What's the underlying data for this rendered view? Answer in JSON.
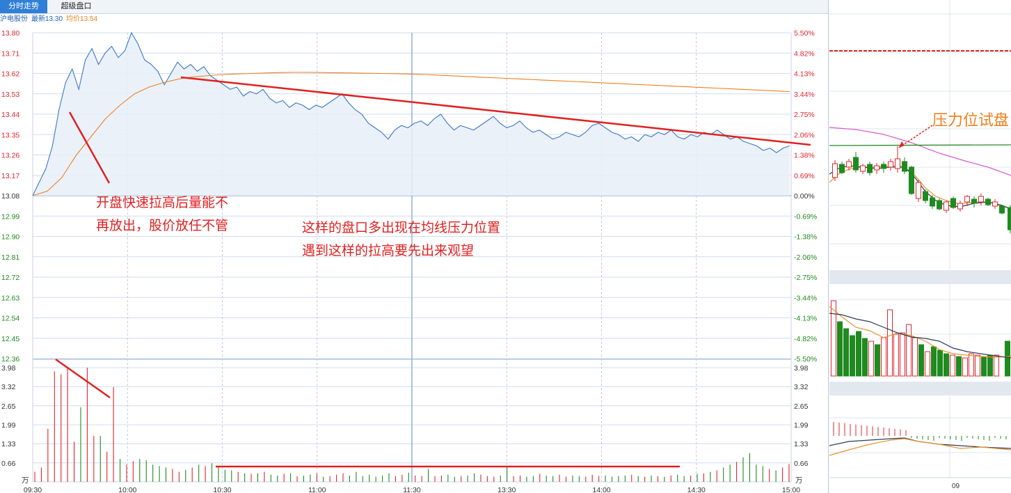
{
  "tabs": [
    {
      "label": "分时走势",
      "active": true
    },
    {
      "label": "超级盘口",
      "active": false
    }
  ],
  "info": {
    "stock_name": "沪电股份",
    "latest_label": "最新",
    "latest_value": "13.30",
    "avg_label": "均价",
    "avg_value": "13.54"
  },
  "colors": {
    "price_line": "#3a78c8",
    "avg_line": "#ee7f1f",
    "up": "#e0242e",
    "down": "#1f8a1f",
    "annotation": "#e02020",
    "grid": "#cfdcee",
    "price_fill": "#e7eef8"
  },
  "chart_data": {
    "type": "line",
    "prev_close": 13.08,
    "price_ticks": [
      "13.80",
      "13.71",
      "13.62",
      "13.53",
      "13.44",
      "13.35",
      "13.26",
      "13.17",
      "13.08",
      "12.99",
      "12.90",
      "12.81",
      "12.72",
      "12.63",
      "12.54",
      "12.45",
      "12.36"
    ],
    "pct_ticks": [
      "5.50%",
      "4.82%",
      "4.13%",
      "3.44%",
      "2.75%",
      "2.06%",
      "1.38%",
      "0.69%",
      "0.00%",
      "-0.69%",
      "-1.38%",
      "-2.06%",
      "-2.75%",
      "-3.44%",
      "-4.13%",
      "-4.82%",
      "-5.50%"
    ],
    "ylim": [
      12.36,
      13.8
    ],
    "vol_ticks": [
      "3.98",
      "3.32",
      "2.65",
      "1.99",
      "1.33",
      "0.66"
    ],
    "vol_unit": "万",
    "vol_ylim": [
      0,
      3.98
    ],
    "time_labels": [
      "09:30",
      "10:00",
      "10:30",
      "11:00",
      "11:30",
      "13:30",
      "14:00",
      "14:30",
      "15:00"
    ],
    "price": [
      13.08,
      13.14,
      13.2,
      13.3,
      13.46,
      13.58,
      13.64,
      13.55,
      13.68,
      13.73,
      13.66,
      13.71,
      13.74,
      13.69,
      13.72,
      13.8,
      13.75,
      13.68,
      13.66,
      13.63,
      13.57,
      13.62,
      13.67,
      13.64,
      13.66,
      13.63,
      13.65,
      13.61,
      13.59,
      13.57,
      13.55,
      13.56,
      13.52,
      13.54,
      13.53,
      13.55,
      13.51,
      13.49,
      13.5,
      13.47,
      13.49,
      13.48,
      13.46,
      13.48,
      13.47,
      13.49,
      13.51,
      13.53,
      13.49,
      13.46,
      13.44,
      13.4,
      13.38,
      13.36,
      13.33,
      13.37,
      13.39,
      13.38,
      13.4,
      13.41,
      13.39,
      13.42,
      13.44,
      13.4,
      13.37,
      13.39,
      13.38,
      13.37,
      13.39,
      13.41,
      13.43,
      13.4,
      13.38,
      13.39,
      13.41,
      13.38,
      13.36,
      13.37,
      13.35,
      13.33,
      13.34,
      13.36,
      13.35,
      13.34,
      13.36,
      13.39,
      13.4,
      13.38,
      13.36,
      13.35,
      13.33,
      13.34,
      13.32,
      13.35,
      13.34,
      13.36,
      13.35,
      13.37,
      13.34,
      13.33,
      13.35,
      13.34,
      13.36,
      13.35,
      13.37,
      13.35,
      13.33,
      13.34,
      13.32,
      13.31,
      13.3,
      13.28,
      13.29,
      13.27,
      13.29,
      13.3
    ],
    "avg": [
      13.08,
      13.1,
      13.16,
      13.26,
      13.34,
      13.42,
      13.48,
      13.53,
      13.56,
      13.58,
      13.595,
      13.605,
      13.61,
      13.615,
      13.618,
      13.62,
      13.622,
      13.624,
      13.625,
      13.625,
      13.624,
      13.623,
      13.622,
      13.621,
      13.62,
      13.619,
      13.617,
      13.615,
      13.612,
      13.609,
      13.606,
      13.603,
      13.6,
      13.597,
      13.594,
      13.591,
      13.588,
      13.585,
      13.582,
      13.579,
      13.576,
      13.573,
      13.57,
      13.567,
      13.564,
      13.561,
      13.558,
      13.555,
      13.552,
      13.549,
      13.546,
      13.543,
      13.54
    ],
    "volume": [
      0.35,
      0.5,
      1.85,
      3.85,
      3.75,
      3.95,
      1.4,
      2.6,
      3.98,
      1.6,
      1.6,
      1.05,
      3.3,
      0.8,
      0.6,
      0.72,
      0.8,
      0.75,
      0.6,
      0.55,
      0.5,
      0.45,
      0.35,
      0.42,
      0.5,
      0.6,
      0.55,
      0.65,
      0.5,
      0.42,
      0.4,
      0.35,
      0.3,
      0.28,
      0.3,
      0.35,
      0.25,
      0.22,
      0.28,
      0.3,
      0.2,
      0.22,
      0.25,
      0.3,
      0.18,
      0.2,
      0.25,
      0.3,
      0.22,
      0.35,
      0.2,
      0.25,
      0.18,
      0.22,
      0.3,
      0.2,
      0.25,
      0.32,
      0.22,
      0.2,
      0.45,
      0.2,
      0.22,
      0.25,
      0.18,
      0.2,
      0.22,
      0.3,
      0.25,
      0.2,
      0.18,
      0.22,
      0.5,
      0.2,
      0.22,
      0.18,
      0.2,
      0.28,
      0.22,
      0.2,
      0.25,
      0.18,
      0.22,
      0.2,
      0.18,
      0.25,
      0.2,
      0.22,
      0.18,
      0.2,
      0.22,
      0.25,
      0.2,
      0.18,
      0.22,
      0.2,
      0.18,
      0.22,
      0.25,
      0.2,
      0.22,
      0.28,
      0.3,
      0.35,
      0.4,
      0.5,
      0.6,
      0.7,
      0.85,
      1.0,
      0.6,
      0.55,
      0.45,
      0.4,
      0.5,
      0.62
    ],
    "annotations": [
      {
        "lines": [
          "开盘快速拉高后量能不",
          "再放出，股价放任不管"
        ]
      },
      {
        "lines": [
          "这样的盘口多出现在均线压力位置",
          "遇到这样的拉高要先出来观望"
        ]
      }
    ]
  },
  "side_panel": {
    "annotation": "压力位试盘",
    "date_label": "09"
  }
}
